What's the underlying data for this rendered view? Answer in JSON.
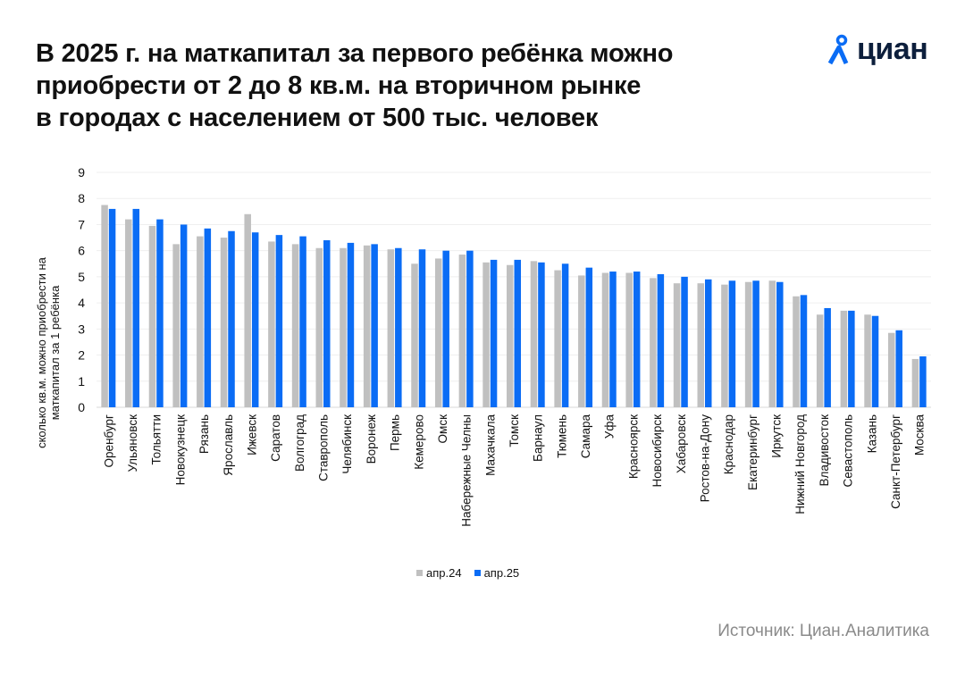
{
  "title_lines": [
    "В 2025 г. на маткапитал за первого ребёнка можно",
    "приобрести от 2 до 8 кв.м. на вторичном рынке",
    "в городах с населением от 500 тыс. человек"
  ],
  "logo": {
    "text": "циан"
  },
  "source": "Источник: Циан.Аналитика",
  "colors": {
    "apr24": "#c0c0c0",
    "apr25": "#0a6cf5"
  },
  "chart_data": {
    "type": "bar",
    "title": "В 2025 г. на маткапитал за первого ребёнка можно приобрести от 2 до 8 кв.м. на вторичном рынке в городах с населением от 500 тыс. человек",
    "ylabel": "сколько кв.м. можно приобрести на маткапитал за 1 ребёнка",
    "xlabel": "",
    "ylim": [
      0,
      9
    ],
    "yticks": [
      "0",
      "1",
      "2",
      "3",
      "4",
      "5",
      "6",
      "7",
      "8",
      "9"
    ],
    "grid": true,
    "legend_position": "bottom",
    "categories": [
      "Оренбург",
      "Ульяновск",
      "Тольятти",
      "Новокузнецк",
      "Рязань",
      "Ярославль",
      "Ижевск",
      "Саратов",
      "Волгоград",
      "Ставрополь",
      "Челябинск",
      "Воронеж",
      "Пермь",
      "Кемерово",
      "Омск",
      "Набережные Челны",
      "Махачкала",
      "Томск",
      "Барнаул",
      "Тюмень",
      "Самара",
      "Уфа",
      "Красноярск",
      "Новосибирск",
      "Хабаровск",
      "Ростов-на-Дону",
      "Краснодар",
      "Екатеринбург",
      "Иркутск",
      "Нижний Новгород",
      "Владивосток",
      "Севастополь",
      "Казань",
      "Санкт-Петербург",
      "Москва"
    ],
    "series": [
      {
        "name": "апр.24",
        "values": [
          7.75,
          7.2,
          6.95,
          6.25,
          6.55,
          6.5,
          7.4,
          6.35,
          6.25,
          6.1,
          6.1,
          6.2,
          6.05,
          5.5,
          5.7,
          5.85,
          5.55,
          5.45,
          5.6,
          5.25,
          5.05,
          5.15,
          5.15,
          4.95,
          4.75,
          4.75,
          4.7,
          4.8,
          4.85,
          4.25,
          3.55,
          3.7,
          3.55,
          2.85,
          1.85
        ]
      },
      {
        "name": "апр.25",
        "values": [
          7.6,
          7.6,
          7.2,
          7.0,
          6.85,
          6.75,
          6.7,
          6.6,
          6.55,
          6.4,
          6.3,
          6.25,
          6.1,
          6.05,
          6.0,
          6.0,
          5.65,
          5.65,
          5.55,
          5.5,
          5.35,
          5.2,
          5.2,
          5.1,
          5.0,
          4.9,
          4.85,
          4.85,
          4.8,
          4.3,
          3.8,
          3.7,
          3.5,
          2.95,
          1.95
        ]
      }
    ]
  }
}
